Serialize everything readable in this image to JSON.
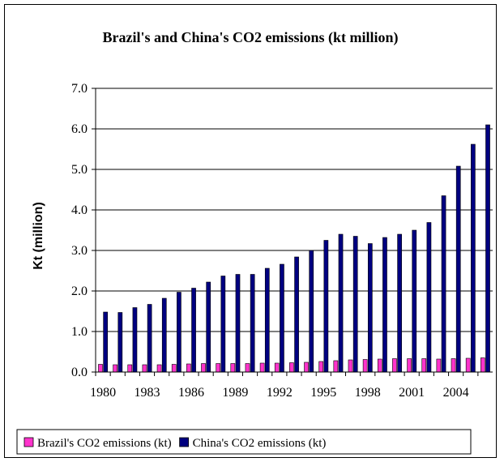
{
  "chart_data": {
    "type": "bar",
    "title": "Brazil's and China's CO2 emissions (kt million)",
    "xlabel": "",
    "ylabel": "Kt (million)",
    "ylim": [
      0,
      7
    ],
    "yticks": [
      "0.0",
      "1.0",
      "2.0",
      "3.0",
      "4.0",
      "5.0",
      "6.0",
      "7.0"
    ],
    "grid": true,
    "legend_position": "bottom",
    "categories": [
      "1980",
      "1981",
      "1982",
      "1983",
      "1984",
      "1985",
      "1986",
      "1987",
      "1988",
      "1989",
      "1990",
      "1991",
      "1992",
      "1993",
      "1994",
      "1995",
      "1996",
      "1997",
      "1998",
      "1999",
      "2000",
      "2001",
      "2002",
      "2003",
      "2004",
      "2005",
      "2006"
    ],
    "xtick_labels": [
      "1980",
      "1983",
      "1986",
      "1989",
      "1992",
      "1995",
      "1998",
      "2001",
      "2004"
    ],
    "series": [
      {
        "name": "Brazil's CO2 emissions (kt)",
        "color": "#ff33cc",
        "values": [
          0.19,
          0.18,
          0.18,
          0.18,
          0.18,
          0.19,
          0.2,
          0.21,
          0.21,
          0.21,
          0.21,
          0.22,
          0.22,
          0.23,
          0.24,
          0.26,
          0.28,
          0.3,
          0.31,
          0.32,
          0.33,
          0.33,
          0.33,
          0.32,
          0.33,
          0.34,
          0.35
        ]
      },
      {
        "name": "China's CO2 emissions (kt)",
        "color": "#000080",
        "values": [
          1.48,
          1.47,
          1.59,
          1.67,
          1.82,
          1.97,
          2.07,
          2.22,
          2.37,
          2.41,
          2.41,
          2.56,
          2.66,
          2.84,
          3.0,
          3.25,
          3.4,
          3.35,
          3.17,
          3.32,
          3.4,
          3.5,
          3.69,
          4.35,
          5.08,
          5.62,
          6.1
        ]
      }
    ]
  }
}
